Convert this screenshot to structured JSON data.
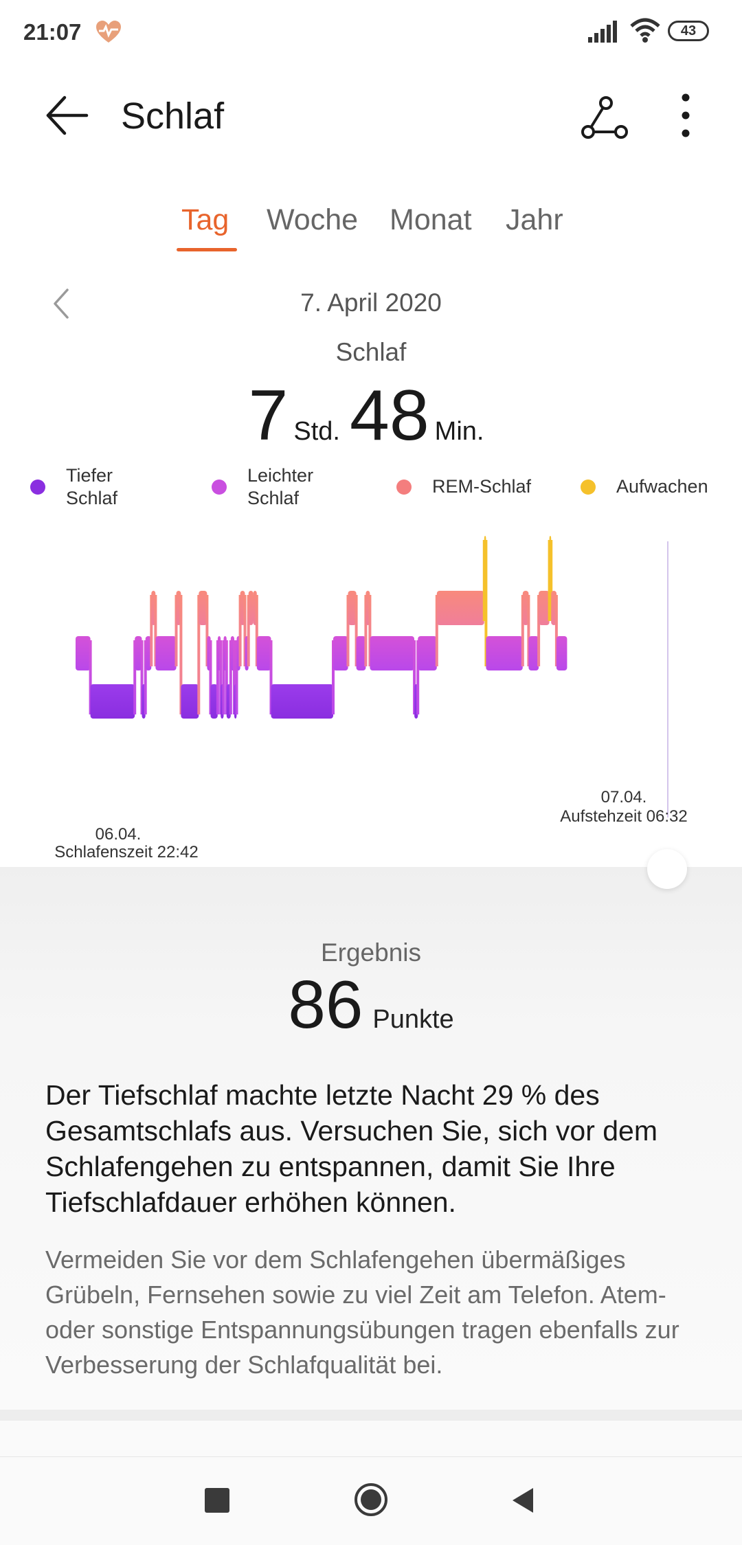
{
  "status_bar": {
    "time": "21:07",
    "battery": "43"
  },
  "header": {
    "title": "Schlaf"
  },
  "tabs": [
    {
      "label": "Tag",
      "active": true
    },
    {
      "label": "Woche",
      "active": false
    },
    {
      "label": "Monat",
      "active": false
    },
    {
      "label": "Jahr",
      "active": false
    }
  ],
  "date_label": "7. April 2020",
  "summary": {
    "label": "Schlaf",
    "hours": "7",
    "hours_unit": "Std.",
    "minutes": "48",
    "minutes_unit": "Min."
  },
  "legend": [
    {
      "label_line1": "Tiefer",
      "label_line2": "Schlaf",
      "color": "#8a2ee0"
    },
    {
      "label_line1": "Leichter",
      "label_line2": "Schlaf",
      "color": "#c94fe0"
    },
    {
      "label_line1": "REM-Schlaf",
      "label_line2": "",
      "color": "#f47e7e"
    },
    {
      "label_line1": "Aufwachen",
      "label_line2": "",
      "color": "#f5c12b"
    }
  ],
  "chart": {
    "start_date": "06.04.",
    "start_label": "Schlafenszeit 22:42",
    "end_date": "07.04.",
    "end_label": "Aufstehzeit 06:32"
  },
  "chart_data": {
    "type": "sleep-stages",
    "stages": [
      "deep",
      "light",
      "rem",
      "awake"
    ],
    "start": "22:42",
    "end": "06:32",
    "segments": [
      [
        "light",
        0.0,
        0.025
      ],
      [
        "deep",
        0.025,
        0.1
      ],
      [
        "light",
        0.1,
        0.112
      ],
      [
        "deep",
        0.112,
        0.118
      ],
      [
        "light",
        0.118,
        0.128
      ],
      [
        "rem",
        0.128,
        0.135
      ],
      [
        "light",
        0.135,
        0.17
      ],
      [
        "rem",
        0.17,
        0.178
      ],
      [
        "deep",
        0.178,
        0.208
      ],
      [
        "rem",
        0.208,
        0.222
      ],
      [
        "light",
        0.222,
        0.228
      ],
      [
        "deep",
        0.228,
        0.24
      ],
      [
        "light",
        0.24,
        0.245
      ],
      [
        "deep",
        0.245,
        0.25
      ],
      [
        "light",
        0.25,
        0.255
      ],
      [
        "deep",
        0.255,
        0.262
      ],
      [
        "light",
        0.262,
        0.268
      ],
      [
        "deep",
        0.268,
        0.272
      ],
      [
        "light",
        0.272,
        0.278
      ],
      [
        "rem",
        0.278,
        0.286
      ],
      [
        "light",
        0.286,
        0.292
      ],
      [
        "rem",
        0.292,
        0.3
      ],
      [
        "rem",
        0.3,
        0.306
      ],
      [
        "light",
        0.306,
        0.33
      ],
      [
        "deep",
        0.33,
        0.435
      ],
      [
        "light",
        0.435,
        0.46
      ],
      [
        "rem",
        0.46,
        0.474
      ],
      [
        "light",
        0.474,
        0.49
      ],
      [
        "rem",
        0.49,
        0.497
      ],
      [
        "light",
        0.497,
        0.572
      ],
      [
        "deep",
        0.572,
        0.578
      ],
      [
        "light",
        0.578,
        0.61
      ],
      [
        "rem",
        0.61,
        0.69
      ],
      [
        "awake",
        0.69,
        0.693
      ],
      [
        "light",
        0.693,
        0.755
      ],
      [
        "rem",
        0.755,
        0.765
      ],
      [
        "light",
        0.765,
        0.782
      ],
      [
        "rem",
        0.782,
        0.8
      ],
      [
        "awake",
        0.8,
        0.803
      ],
      [
        "rem",
        0.803,
        0.812
      ],
      [
        "light",
        0.812,
        0.83
      ]
    ]
  },
  "result": {
    "label": "Ergebnis",
    "score": "86",
    "unit": "Punkte",
    "advice_main": "Der Tiefschlaf machte letzte Nacht 29 % des Gesamtschlafs aus. Versuchen Sie, sich vor dem Schlafengehen zu entspannen, damit Sie Ihre Tiefschlafdauer erhöhen können.",
    "advice_detail": "Vermeiden Sie vor dem Schlafengehen übermäßiges Grübeln, Fernsehen sowie zu viel Zeit am Telefon. Atem- oder sonstige Entspannungsübungen tragen ebenfalls zur Verbesserung der Schlafqualität bei."
  }
}
